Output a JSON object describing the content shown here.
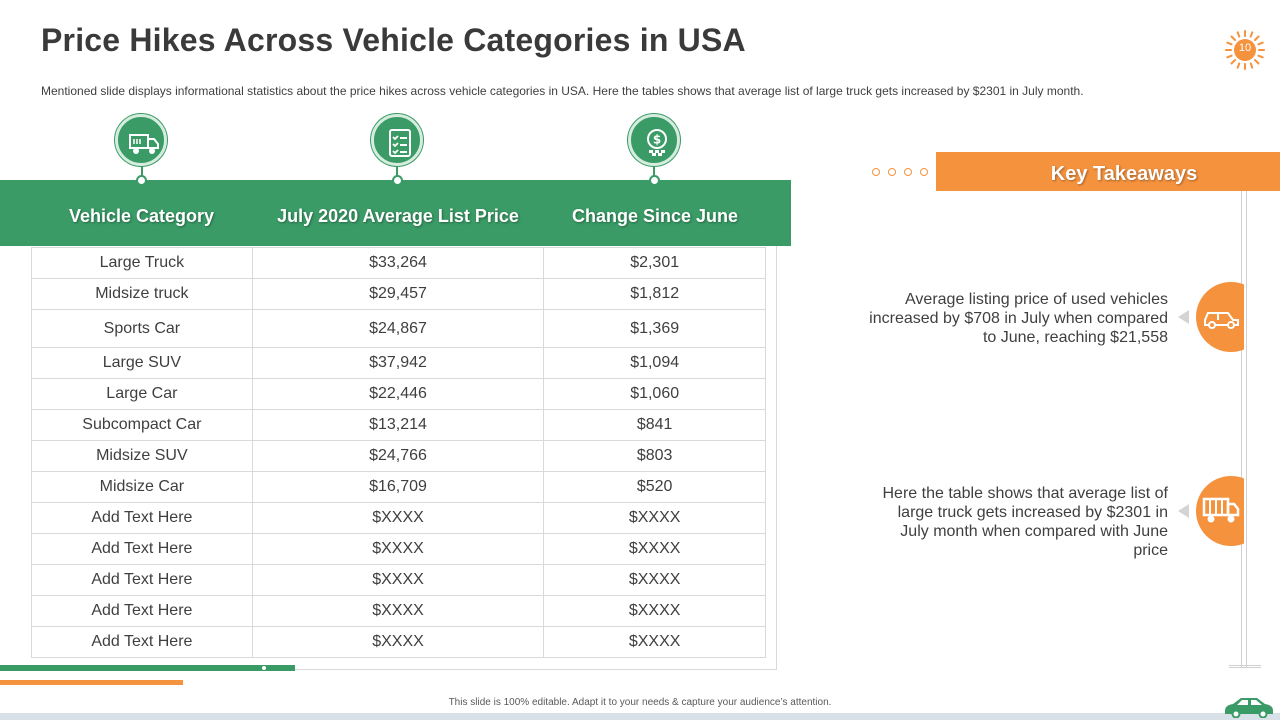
{
  "slide": {
    "title": "Price Hikes Across Vehicle Categories in USA",
    "subtitle": "Mentioned slide displays informational  statistics  about  the price hikes across vehicle  categories in USA. Here the tables shows that average  list of large truck gets increased by $2301 in July month.",
    "page_number": "10",
    "footer": "This slide is 100% editable.  Adapt it to your needs & capture your audience’s attention."
  },
  "colors": {
    "green": "#3a9b66",
    "orange": "#f5923e"
  },
  "table": {
    "headers": [
      "Vehicle Category",
      "July 2020 Average List Price",
      "Change Since June"
    ],
    "header_icons": [
      "delivery-truck-icon",
      "checklist-icon",
      "dollar-coin-icon"
    ],
    "rows": [
      [
        "Large Truck",
        "$33,264",
        "$2,301"
      ],
      [
        "Midsize truck",
        "$29,457",
        "$1,812"
      ],
      [
        "Sports Car",
        "$24,867",
        "$1,369"
      ],
      [
        "Large SUV",
        "$37,942",
        "$1,094"
      ],
      [
        "Large Car",
        "$22,446",
        "$1,060"
      ],
      [
        "Subcompact Car",
        "$13,214",
        "$841"
      ],
      [
        "Midsize SUV",
        "$24,766",
        "$803"
      ],
      [
        "Midsize Car",
        "$16,709",
        "$520"
      ],
      [
        "Add Text Here",
        "$XXXX",
        "$XXXX"
      ],
      [
        "Add Text Here",
        "$XXXX",
        "$XXXX"
      ],
      [
        "Add Text Here",
        "$XXXX",
        "$XXXX"
      ],
      [
        "Add Text Here",
        "$XXXX",
        "$XXXX"
      ],
      [
        "Add Text Here",
        "$XXXX",
        "$XXXX"
      ]
    ]
  },
  "takeaways": {
    "title": "Key Takeaways",
    "items": [
      {
        "text": "Average listing price of used vehicles increased by $708 in July when compared to June, reaching $21,558",
        "icon": "car-icon"
      },
      {
        "text": "Here the table shows that average list of large truck gets increased by $2301 in July month when compared with June price",
        "icon": "truck-icon"
      }
    ]
  }
}
